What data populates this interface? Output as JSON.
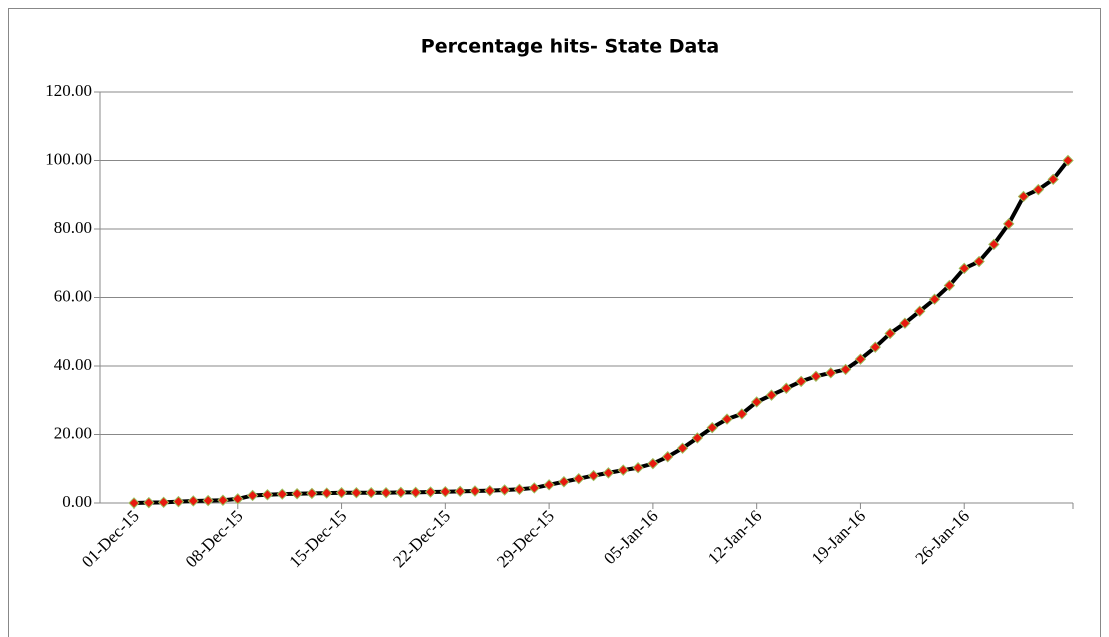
{
  "chart_data": {
    "type": "line",
    "title": "Percentage hits- State Data",
    "categories": [
      "01-Dec-15",
      null,
      null,
      null,
      null,
      null,
      null,
      "08-Dec-15",
      null,
      null,
      null,
      null,
      null,
      null,
      "15-Dec-15",
      null,
      null,
      null,
      null,
      null,
      null,
      "22-Dec-15",
      null,
      null,
      null,
      null,
      null,
      null,
      "29-Dec-15",
      null,
      null,
      null,
      null,
      null,
      null,
      "05-Jan-16",
      null,
      null,
      null,
      null,
      null,
      null,
      "12-Jan-16",
      null,
      null,
      null,
      null,
      null,
      null,
      "19-Jan-16",
      null,
      null,
      null,
      null,
      null,
      null,
      "26-Jan-16",
      null,
      null,
      null,
      null,
      null,
      null,
      null
    ],
    "series": [
      {
        "name": "Percentage hits",
        "color": "#000000",
        "marker_color": "#e8190f",
        "marker_edge": "#9bbb59",
        "values": [
          0.0,
          0.1,
          0.2,
          0.4,
          0.6,
          0.7,
          0.8,
          1.2,
          2.2,
          2.4,
          2.6,
          2.7,
          2.8,
          2.9,
          3.0,
          3.0,
          3.0,
          3.0,
          3.1,
          3.1,
          3.2,
          3.3,
          3.4,
          3.5,
          3.6,
          3.8,
          4.0,
          4.4,
          5.3,
          6.2,
          7.1,
          8.0,
          8.8,
          9.6,
          10.3,
          11.5,
          13.5,
          16.0,
          19.0,
          22.0,
          24.5,
          26.0,
          29.5,
          31.5,
          33.5,
          35.5,
          37.0,
          38.0,
          39.0,
          42.0,
          45.5,
          49.5,
          52.5,
          56.0,
          59.5,
          63.5,
          68.5,
          70.5,
          75.5,
          81.5,
          89.5,
          91.5,
          94.5,
          100.0
        ]
      }
    ],
    "ylim": [
      0,
      120
    ],
    "yticks": [
      {
        "value": 0,
        "label": "0.00"
      },
      {
        "value": 20,
        "label": "20.00"
      },
      {
        "value": 40,
        "label": "40.00"
      },
      {
        "value": 60,
        "label": "60.00"
      },
      {
        "value": 80,
        "label": "80.00"
      },
      {
        "value": 100,
        "label": "100.00"
      },
      {
        "value": 120,
        "label": "120.00"
      }
    ],
    "grid": true
  }
}
